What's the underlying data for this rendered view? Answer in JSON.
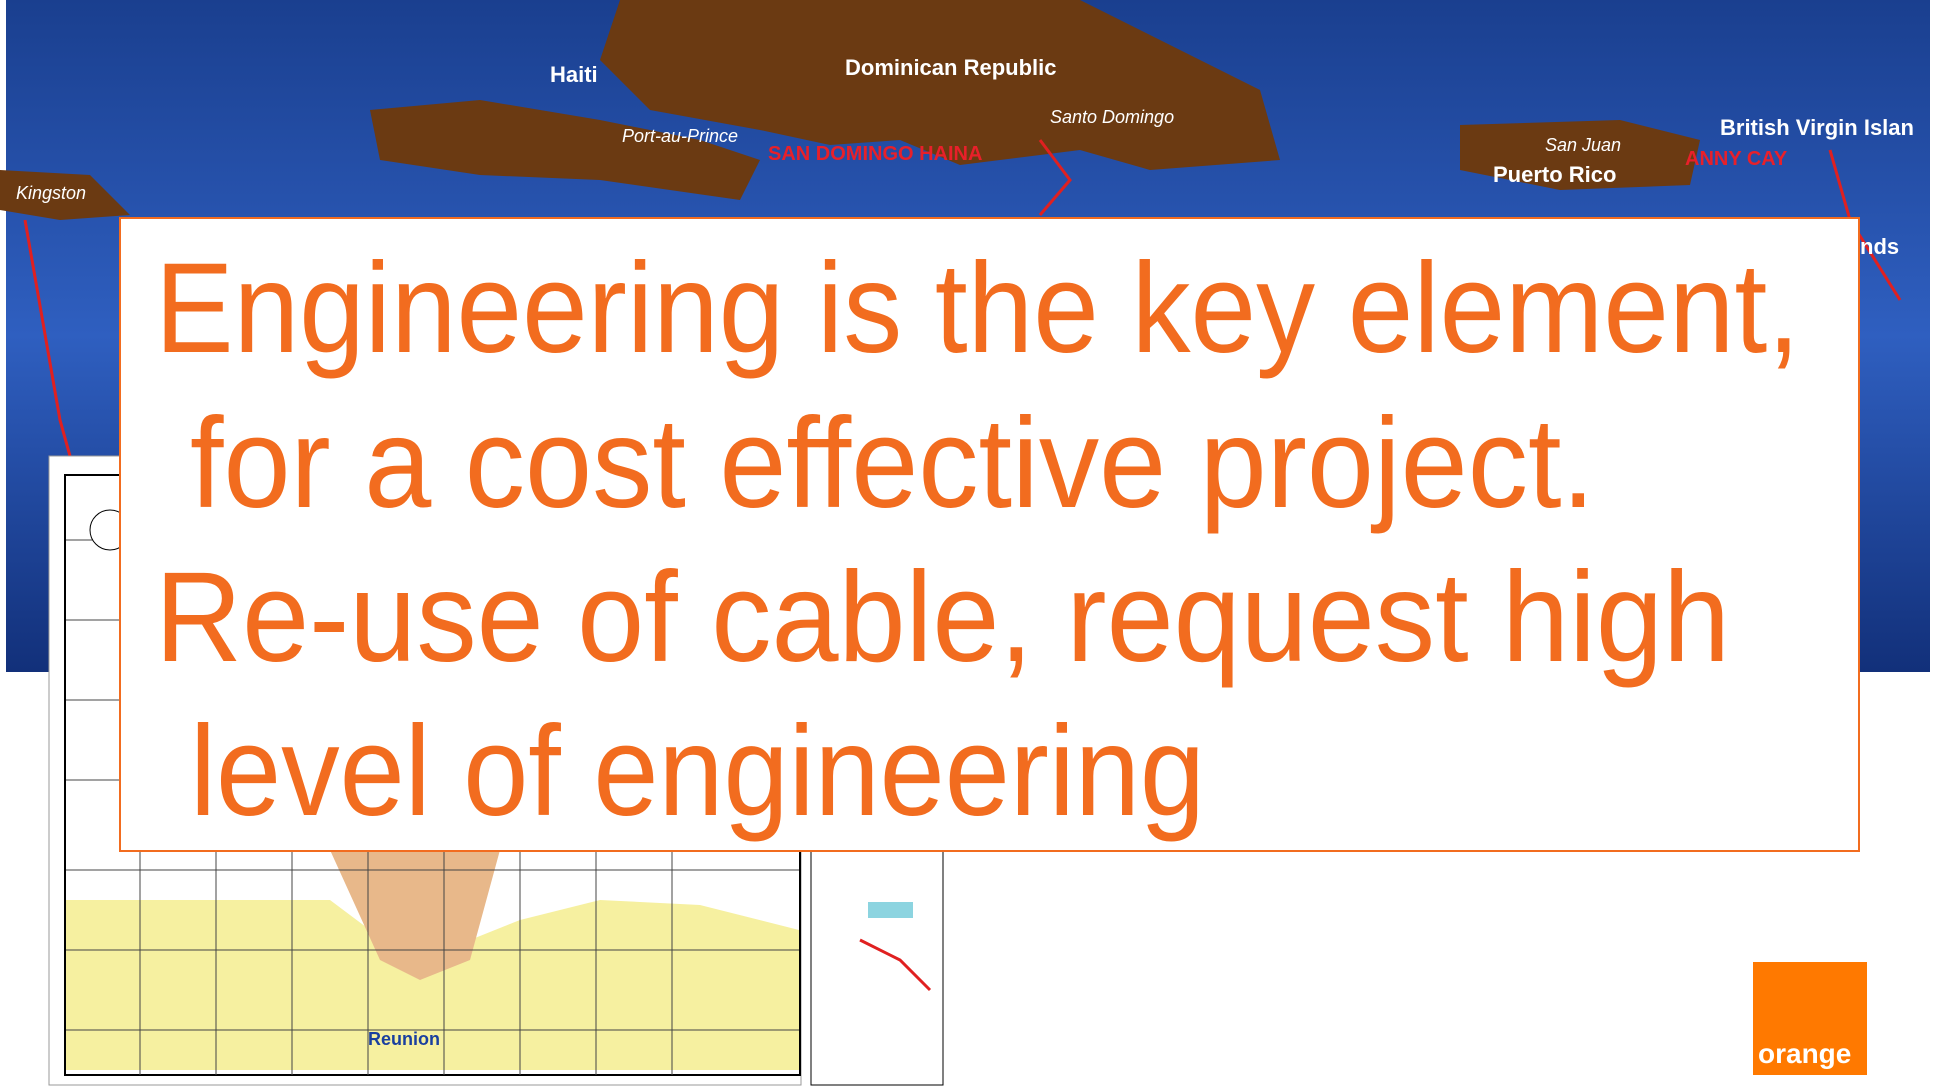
{
  "slide": {
    "headline": [
      "Engineering is the key element,",
      "for a cost effective project.",
      "Re-use of cable, request high",
      "level of engineering"
    ],
    "map_labels": {
      "haiti": "Haiti",
      "dominican_republic": "Dominican Republic",
      "port_au_prince": "Port-au-Prince",
      "santo_domingo": "Santo Domingo",
      "kingston": "Kingston",
      "san_juan": "San Juan",
      "puerto_rico": "Puerto Rico",
      "bvi": "British Virgin Islan",
      "islands": "nds",
      "haina": "SAN DOMINGO HAINA",
      "cay": "ANNY CAY"
    },
    "chart_label": "Reunion",
    "logo": "orange"
  }
}
